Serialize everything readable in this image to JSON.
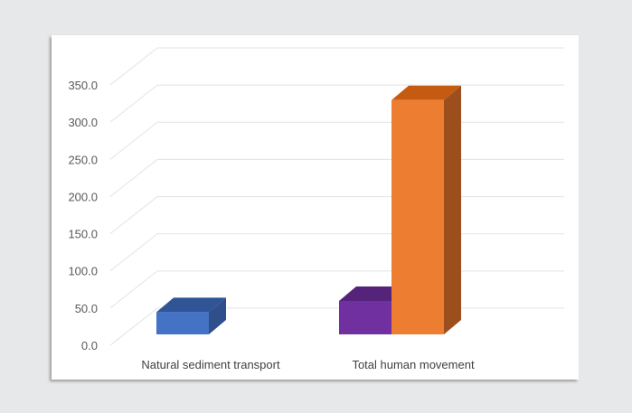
{
  "chart_data": {
    "type": "bar",
    "style": "3d-column",
    "title": "",
    "xlabel": "",
    "ylabel": "",
    "ylim": [
      0,
      350
    ],
    "grid": true,
    "y_ticks": [
      "0.0",
      "50.0",
      "100.0",
      "150.0",
      "200.0",
      "250.0",
      "300.0",
      "350.0"
    ],
    "categories": [
      "Natural sediment transport",
      "Total human movement"
    ],
    "bars": [
      {
        "category": 0,
        "value": 30,
        "color": "#4472c4",
        "top": "#2f5597",
        "side": "#2e4f8c"
      },
      {
        "category": 1,
        "value": 45,
        "color": "#7030a0",
        "top": "#55237a",
        "side": "#4a1f6b"
      },
      {
        "category": 1,
        "value": 315,
        "color": "#ed7d31",
        "top": "#c55a11",
        "side": "#9c4f1c"
      }
    ]
  }
}
